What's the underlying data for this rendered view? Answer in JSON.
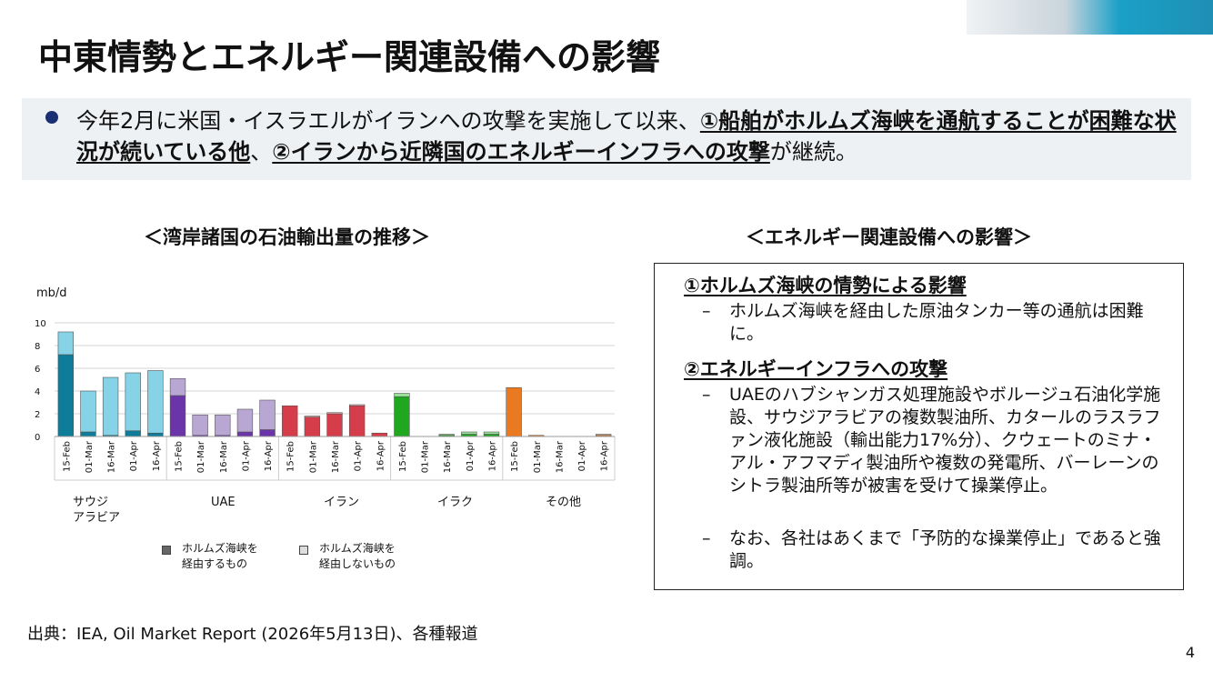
{
  "header": {
    "title": "中東情勢とエネルギー関連設備への影響"
  },
  "summary": {
    "plain1": "今年2月に米国・イスラエルがイランへの攻撃を実施して以来、",
    "em1": "①船舶がホルムズ海峡を通航することが困難な状況が続いている他",
    "plain2": "、",
    "em2": "②イランから近隣国のエネルギーインフラへの攻撃",
    "plain3": "が継続。"
  },
  "left": {
    "title": "＜湾岸諸国の石油輸出量の推移＞",
    "unit": "mb/d",
    "groups": [
      "サウジ\nアラビア",
      "UAE",
      "イラン",
      "イラク",
      "その他"
    ],
    "legend": [
      {
        "label": "ホルムズ海峡を\n経由するもの",
        "color": "#666666"
      },
      {
        "label": "ホルムズ海峡を\n経由しないもの",
        "color": "#dddddd"
      }
    ]
  },
  "chart_data": {
    "type": "bar",
    "stacked": true,
    "ylim": [
      0,
      10
    ],
    "yticks": [
      0,
      2,
      4,
      6,
      8,
      10
    ],
    "grid": true,
    "categories": [
      "15-Feb",
      "01-Mar",
      "16-Mar",
      "01-Apr",
      "16-Apr",
      "15-Feb",
      "01-Mar",
      "16-Mar",
      "01-Apr",
      "16-Apr",
      "15-Feb",
      "01-Mar",
      "16-Mar",
      "01-Apr",
      "16-Apr",
      "15-Feb",
      "01-Mar",
      "16-Mar",
      "01-Apr",
      "16-Apr",
      "15-Feb",
      "01-Mar",
      "16-Mar",
      "01-Apr",
      "16-Apr"
    ],
    "groups": [
      {
        "name": "サウジアラビア",
        "dark": "#0e7d99",
        "light": "#86d2e6"
      },
      {
        "name": "UAE",
        "dark": "#6a35a8",
        "light": "#b9a7d3"
      },
      {
        "name": "イラン",
        "dark": "#d63d4a",
        "light": "#f2b8b8"
      },
      {
        "name": "イラク",
        "dark": "#1fa81f",
        "light": "#9ae09a"
      },
      {
        "name": "その他",
        "dark": "#ea7a22",
        "light": "#f6c89a"
      }
    ],
    "series": [
      {
        "values": [
          7.2,
          0.4,
          0.1,
          0.5,
          0.3,
          3.6,
          0.1,
          0.1,
          0.4,
          0.6,
          2.7,
          1.7,
          2.0,
          2.7,
          0.3,
          3.5,
          0.0,
          0.1,
          0.2,
          0.2,
          4.3,
          0.1,
          0.0,
          0.0,
          0.1
        ]
      },
      {
        "values": [
          2.0,
          3.6,
          5.1,
          5.1,
          5.5,
          1.5,
          1.8,
          1.8,
          2.0,
          2.6,
          0.0,
          0.1,
          0.1,
          0.1,
          0.0,
          0.3,
          0.0,
          0.1,
          0.2,
          0.2,
          0.0,
          0.0,
          0.0,
          0.0,
          0.1
        ]
      }
    ]
  },
  "right": {
    "title": "＜エネルギー関連設備への影響＞",
    "dash": "–",
    "section1": {
      "heading": "①ホルムズ海峡の情勢による影響",
      "items": [
        "ホルムズ海峡を経由した原油タンカー等の通航は困難に。"
      ]
    },
    "section2": {
      "heading": "②エネルギーインフラへの攻撃",
      "items": [
        "UAEのハブシャンガス処理施設やボルージュ石油化学施設、サウジアラビアの複数製油所、カタールのラスラファン液化施設（輸出能力17%分）、クウェートのミナ・アル・アフマディ製油所や複数の発電所、バーレーンのシトラ製油所等が被害を受けて操業停止。",
        "なお、各社はあくまで「予防的な操業停止」であると強調。"
      ]
    }
  },
  "footer": {
    "source": "出典：IEA, Oil Market Report (2026年5月13日)、各種報道",
    "page": "4"
  }
}
